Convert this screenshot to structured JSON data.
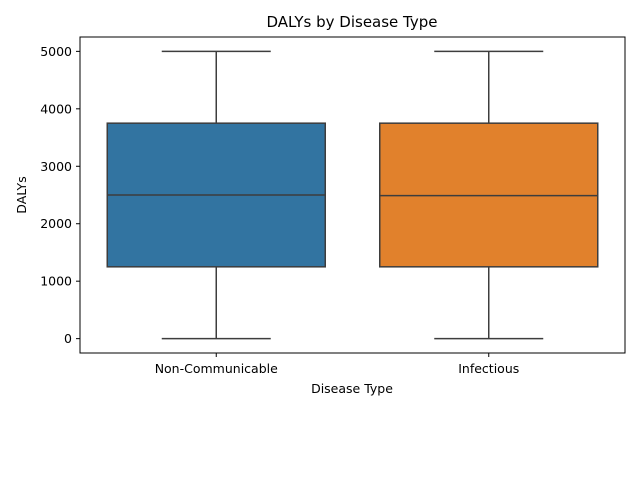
{
  "chart_data": {
    "type": "box",
    "title": "DALYs by Disease Type",
    "xlabel": "Disease Type",
    "ylabel": "DALYs",
    "ylim": [
      -250,
      5250
    ],
    "yticks": [
      0,
      1000,
      2000,
      3000,
      4000,
      5000
    ],
    "grid": false,
    "categories": [
      "Non-Communicable",
      "Infectious"
    ],
    "boxes": [
      {
        "category": "Non-Communicable",
        "whisker_low": 0,
        "q1": 1250,
        "median": 2500,
        "q3": 3750,
        "whisker_high": 5000,
        "color": "#3274a1"
      },
      {
        "category": "Infectious",
        "whisker_low": 0,
        "q1": 1250,
        "median": 2490,
        "q3": 3750,
        "whisker_high": 5000,
        "color": "#e1812c"
      }
    ],
    "line_color": "#3d3d3d"
  }
}
